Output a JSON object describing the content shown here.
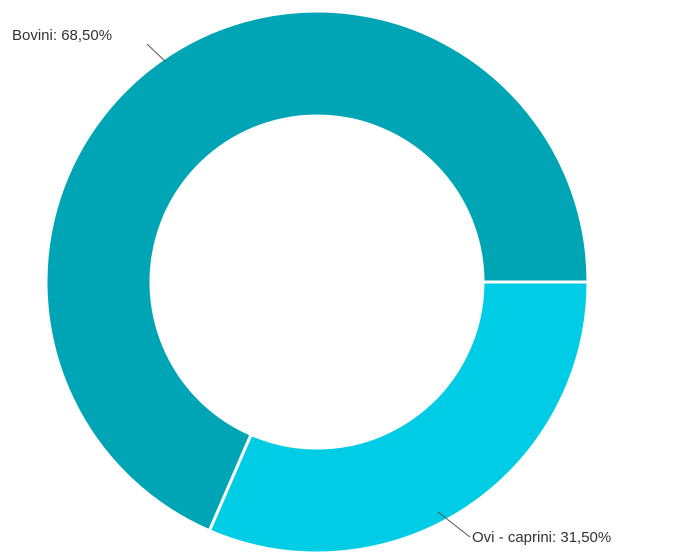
{
  "chart_data": {
    "type": "pie",
    "variant": "donut",
    "start_position": "right (3 o'clock), clockwise",
    "slices": [
      {
        "name": "Ovi - caprini",
        "value": 31.5,
        "label": "Ovi - caprini: 31,50%",
        "color": "#00CCE6"
      },
      {
        "name": "Bovini",
        "value": 68.5,
        "label": "Bovini: 68,50%",
        "color": "#00A5B5"
      }
    ],
    "slice_border_color": "#ffffff",
    "legend": "none"
  }
}
